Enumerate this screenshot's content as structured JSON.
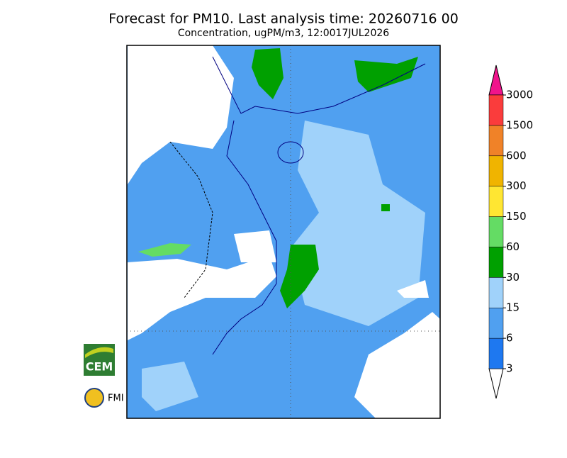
{
  "title": "Forecast for PM10. Last analysis time: 20260716 00",
  "subtitle": "Concentration, ugPM/m3, 12:0017JUL2026",
  "colorbar": {
    "levels": [
      3,
      6,
      15,
      30,
      60,
      150,
      300,
      600,
      1500,
      3000
    ],
    "colors": [
      "#1e78f0",
      "#50a0f0",
      "#a0d2fa",
      "#00a000",
      "#64dc64",
      "#ffe632",
      "#f0b400",
      "#f08228",
      "#fa3c3c"
    ],
    "under_color": "#ffffff",
    "over_color": "#f0148c"
  },
  "logos": [
    "CEM",
    "FMI"
  ]
}
